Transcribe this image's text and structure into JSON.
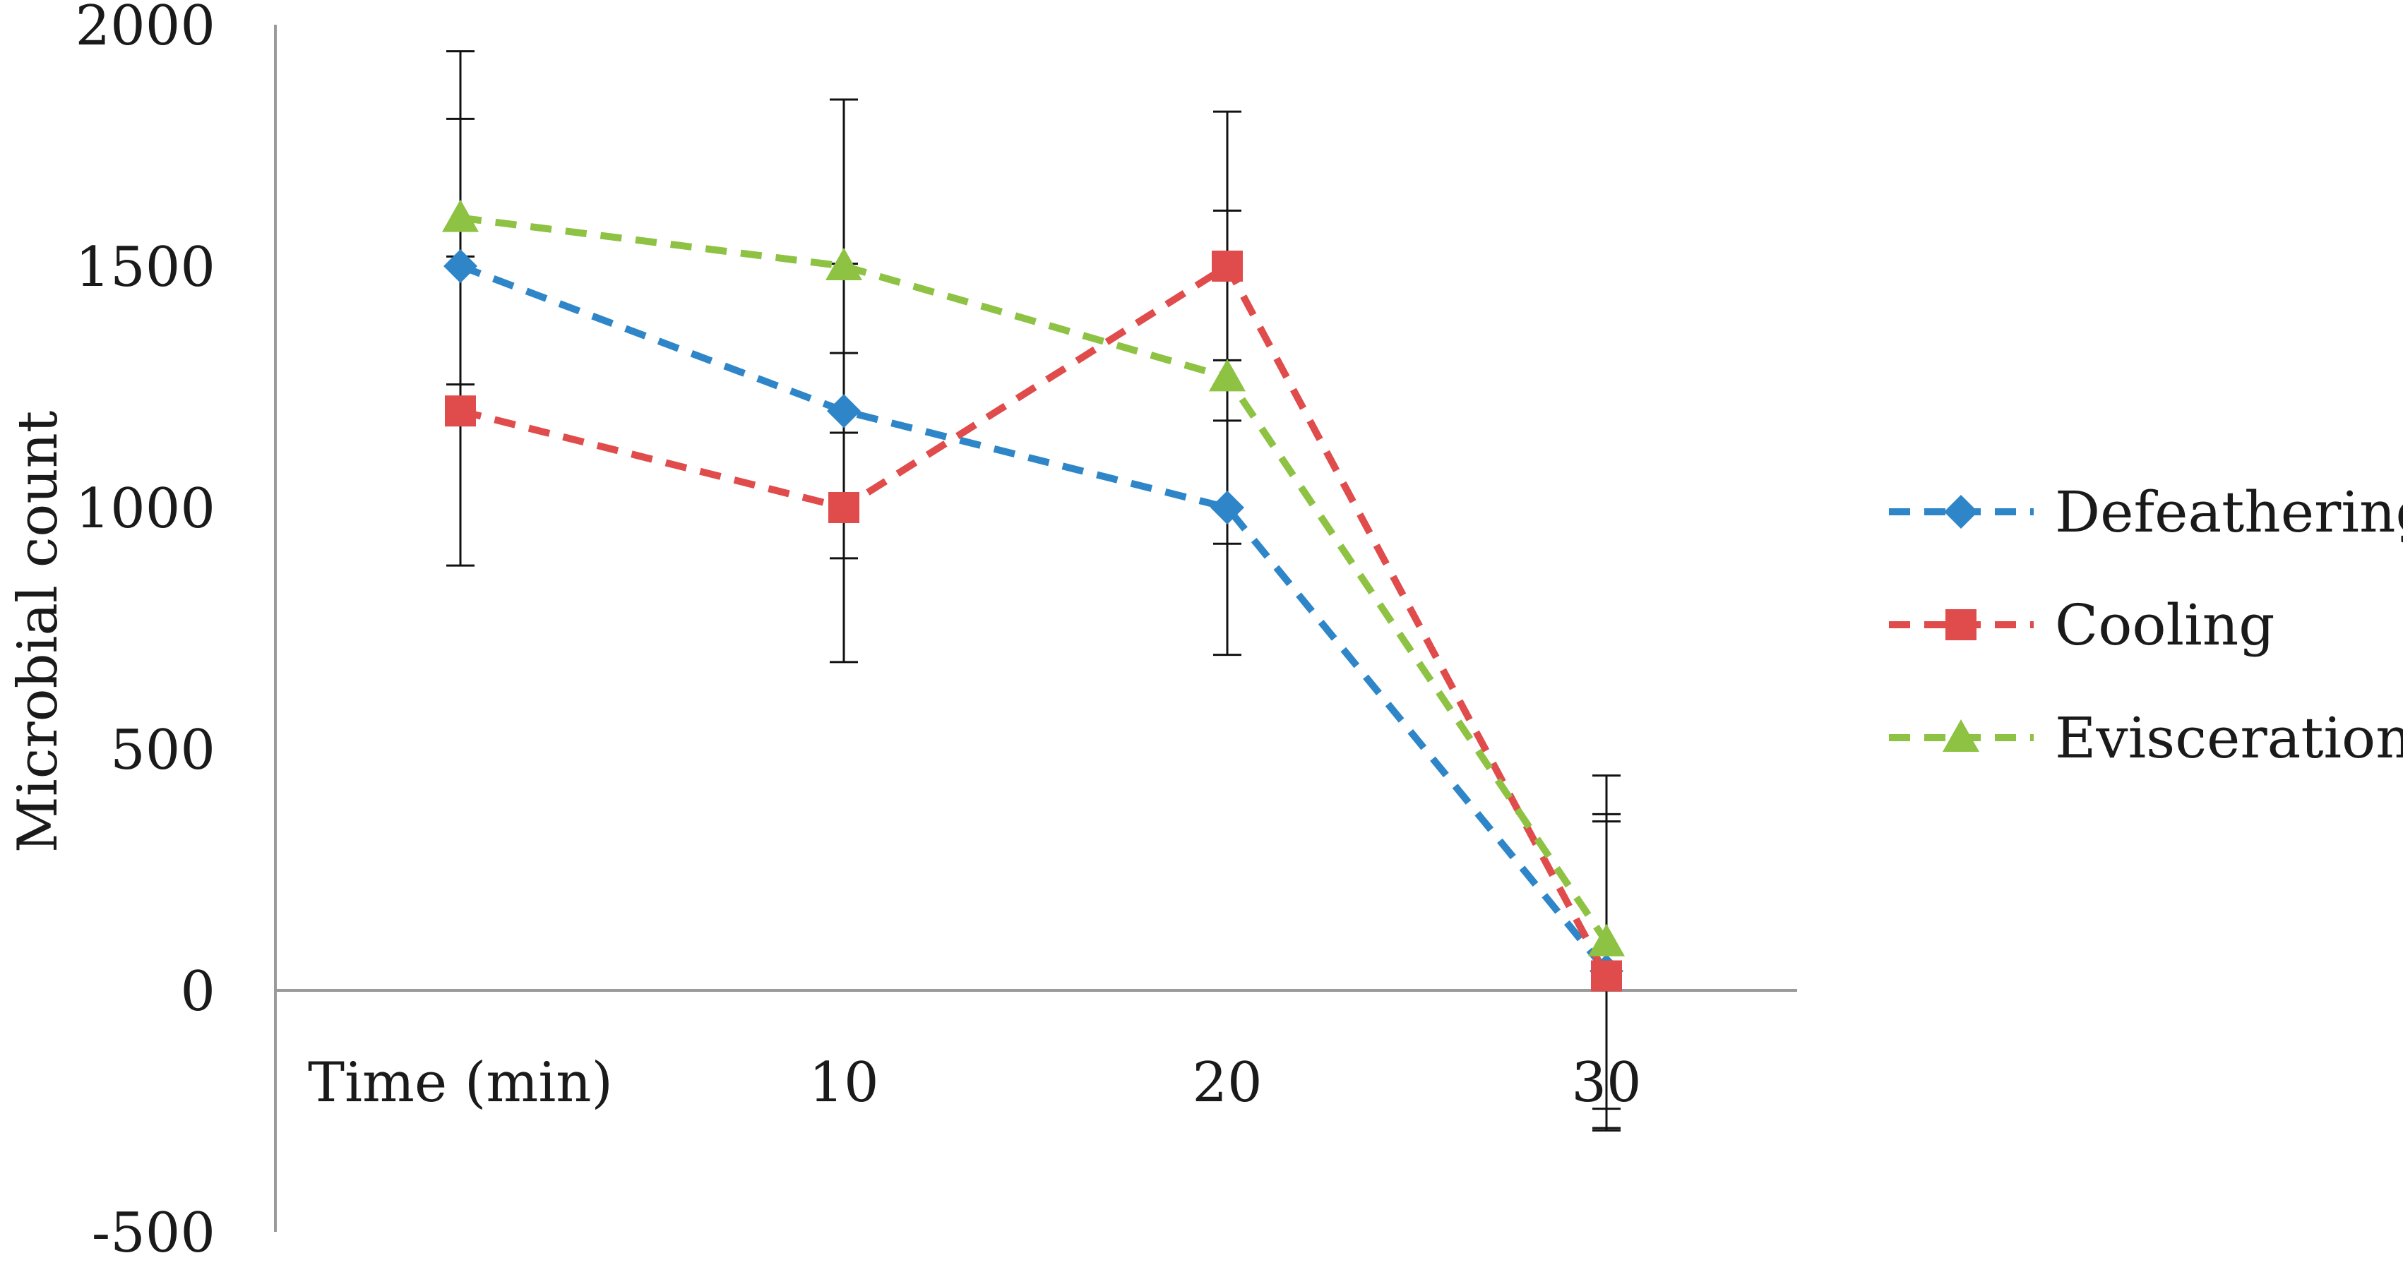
{
  "chart_data": {
    "type": "line",
    "title": "",
    "xlabel": "",
    "ylabel": "Microbial count",
    "categories": [
      "Time (min)",
      "10",
      "20",
      "30"
    ],
    "yticks": [
      "2000",
      "1500",
      "1000",
      "500",
      "0",
      "-500"
    ],
    "ylim": [
      -500,
      2000
    ],
    "grid": false,
    "legend_position": "right",
    "series": [
      {
        "name": "Defeathering",
        "color": "#2E86C8",
        "marker": "diamond",
        "line_style": "dashed",
        "values": [
          1500,
          1200,
          1000,
          40
        ],
        "error_bars": [
          305,
          305,
          305,
          325
        ]
      },
      {
        "name": "Cooling",
        "color": "#E04B4B",
        "marker": "square",
        "line_style": "dashed",
        "values": [
          1200,
          1000,
          1500,
          30
        ],
        "error_bars": [
          320,
          320,
          320,
          320
        ]
      },
      {
        "name": "Evisceration",
        "color": "#8DC243",
        "marker": "triangle",
        "line_style": "dashed",
        "values": [
          1600,
          1500,
          1270,
          100
        ],
        "error_bars": [
          345,
          345,
          345,
          345
        ]
      }
    ]
  }
}
